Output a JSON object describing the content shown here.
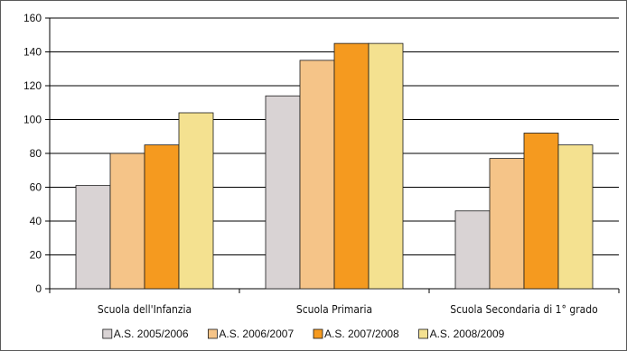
{
  "chart_data": {
    "type": "bar",
    "categories": [
      "Scuola dell'Infanzia",
      "Scuola Primaria",
      "Scuola Secondaria di 1° grado"
    ],
    "series": [
      {
        "name": "A.S. 2005/2006",
        "values": [
          61,
          114,
          46
        ],
        "color": "#d9d3d4"
      },
      {
        "name": "A.S. 2006/2007",
        "values": [
          80,
          135,
          77
        ],
        "color": "#f5c488"
      },
      {
        "name": "A.S. 2007/2008",
        "values": [
          85,
          145,
          92
        ],
        "color": "#f59a1f"
      },
      {
        "name": "A.S. 2008/2009",
        "values": [
          104,
          145,
          85
        ],
        "color": "#f4e190"
      }
    ],
    "yticks": [
      "0",
      "20",
      "40",
      "60",
      "80",
      "100",
      "120",
      "140",
      "160"
    ],
    "ylim": [
      0,
      160
    ],
    "grid": true,
    "legend_position": "bottom",
    "title": "",
    "xlabel": "",
    "ylabel": ""
  }
}
